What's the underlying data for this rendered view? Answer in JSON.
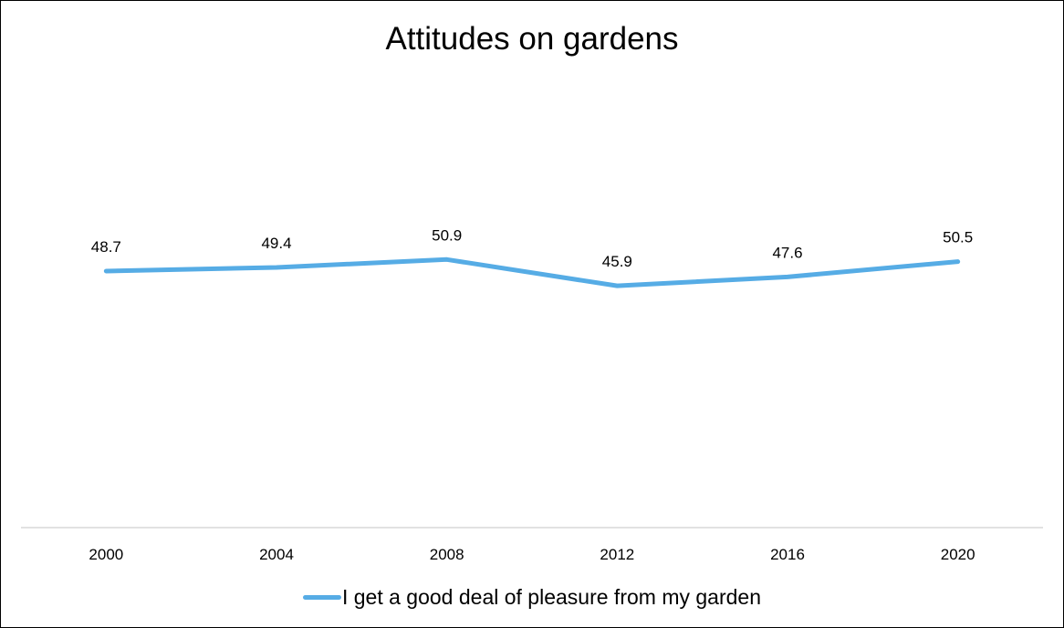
{
  "chart_data": {
    "type": "line",
    "title": "Attitudes on gardens",
    "xlabel": "",
    "ylabel": "",
    "categories": [
      "2000",
      "2004",
      "2008",
      "2012",
      "2016",
      "2020"
    ],
    "series": [
      {
        "name": "I get a good deal of pleasure from my garden",
        "values": [
          48.7,
          49.4,
          50.9,
          45.9,
          47.6,
          50.5
        ],
        "labels": [
          "48.7",
          "49.4",
          "50.9",
          "45.9",
          "47.6",
          "50.5"
        ],
        "color": "#56ace5"
      }
    ],
    "ylim": [
      0,
      100
    ],
    "grid": false,
    "legend": "bottom"
  }
}
